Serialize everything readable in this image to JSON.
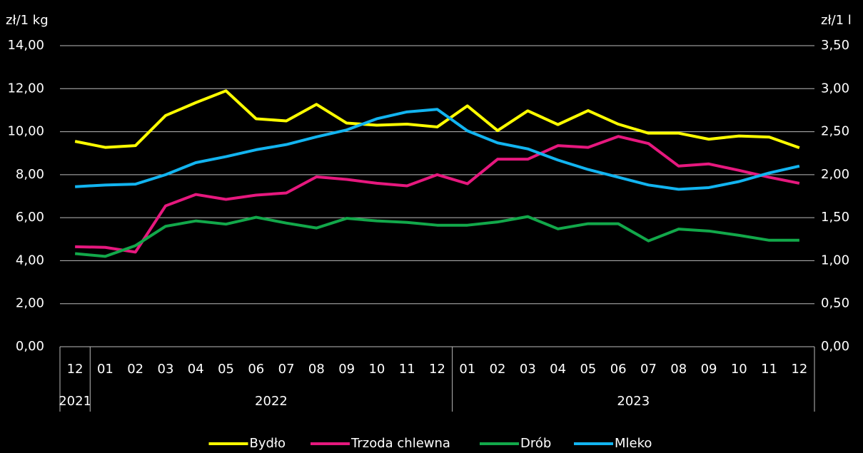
{
  "chart_data": {
    "type": "line",
    "y_axis_label": "zł/1 kg",
    "y2_axis_label": "zł/1 l",
    "categories": [
      "12",
      "01",
      "02",
      "03",
      "04",
      "05",
      "06",
      "07",
      "08",
      "09",
      "10",
      "11",
      "12",
      "01",
      "02",
      "03",
      "04",
      "05",
      "06",
      "07",
      "08",
      "09",
      "10",
      "11",
      "12"
    ],
    "years": [
      "2021",
      "2022",
      "2023"
    ],
    "series": [
      {
        "name": "Bydło",
        "color": "#ffff00",
        "values": [
          9.55,
          9.27,
          9.35,
          10.75,
          11.35,
          11.9,
          10.6,
          10.5,
          11.27,
          10.4,
          10.3,
          10.35,
          10.22,
          11.2,
          10.05,
          10.97,
          10.33,
          10.98,
          10.35,
          9.93,
          9.93,
          9.65,
          9.8,
          9.75,
          9.25
        ]
      },
      {
        "name": "Trzoda chlewna",
        "color": "#e6187e",
        "values": [
          4.65,
          4.62,
          4.4,
          6.55,
          7.08,
          6.85,
          7.05,
          7.15,
          7.9,
          7.78,
          7.6,
          7.48,
          8.0,
          7.58,
          8.72,
          8.72,
          9.35,
          9.27,
          9.78,
          9.45,
          8.4,
          8.5,
          8.2,
          7.88,
          7.6
        ]
      },
      {
        "name": "Drób",
        "color": "#12a84a",
        "values": [
          4.33,
          4.2,
          4.7,
          5.6,
          5.85,
          5.7,
          6.02,
          5.75,
          5.52,
          5.97,
          5.85,
          5.78,
          5.65,
          5.65,
          5.8,
          6.05,
          5.48,
          5.72,
          5.72,
          4.92,
          5.47,
          5.38,
          5.18,
          4.95,
          4.95
        ]
      },
      {
        "name": "Mleko",
        "color": "#12b4f0",
        "axis": "y2",
        "values": [
          1.86,
          1.88,
          1.89,
          2.0,
          2.14,
          2.21,
          2.29,
          2.35,
          2.44,
          2.52,
          2.65,
          2.73,
          2.76,
          2.51,
          2.37,
          2.3,
          2.17,
          2.06,
          1.97,
          1.88,
          1.83,
          1.85,
          1.92,
          2.02,
          2.1
        ]
      }
    ],
    "ylim": [
      0,
      14
    ],
    "yticks": [
      {
        "value": 0,
        "label": "0,00"
      },
      {
        "value": 2,
        "label": "2,00"
      },
      {
        "value": 4,
        "label": "4,00"
      },
      {
        "value": 6,
        "label": "6,00"
      },
      {
        "value": 8,
        "label": "8,00"
      },
      {
        "value": 10,
        "label": "10,00"
      },
      {
        "value": 12,
        "label": "12,00"
      },
      {
        "value": 14,
        "label": "14,00"
      }
    ],
    "y2lim": [
      0,
      3.5
    ],
    "y2ticks": [
      {
        "value": 0,
        "label": "0,00"
      },
      {
        "value": 0.5,
        "label": "0,50"
      },
      {
        "value": 1,
        "label": "1,00"
      },
      {
        "value": 1.5,
        "label": "1,50"
      },
      {
        "value": 2,
        "label": "2,00"
      },
      {
        "value": 2.5,
        "label": "2,50"
      },
      {
        "value": 3,
        "label": "3,00"
      },
      {
        "value": 3.5,
        "label": "3,50"
      }
    ],
    "grid": true,
    "legend": "bottom"
  }
}
